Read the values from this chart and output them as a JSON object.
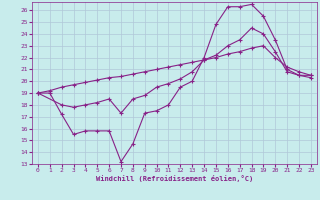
{
  "xlabel": "Windchill (Refroidissement éolien,°C)",
  "bg_color": "#c8ecec",
  "grid_color": "#b0c8d8",
  "line_color": "#882288",
  "xlim": [
    -0.5,
    23.5
  ],
  "ylim": [
    13,
    26.7
  ],
  "yticks": [
    13,
    14,
    15,
    16,
    17,
    18,
    19,
    20,
    21,
    22,
    23,
    24,
    25,
    26
  ],
  "xticks": [
    0,
    1,
    2,
    3,
    4,
    5,
    6,
    7,
    8,
    9,
    10,
    11,
    12,
    13,
    14,
    15,
    16,
    17,
    18,
    19,
    20,
    21,
    22,
    23
  ],
  "line1_x": [
    0,
    1,
    2,
    3,
    4,
    5,
    6,
    7,
    8,
    9,
    10,
    11,
    12,
    13,
    14,
    15,
    16,
    17,
    18,
    19,
    20,
    21,
    22,
    23
  ],
  "line1_y": [
    19.0,
    19.0,
    17.2,
    15.5,
    15.8,
    15.8,
    15.8,
    13.2,
    14.7,
    17.3,
    17.5,
    18.0,
    19.5,
    20.0,
    22.0,
    24.8,
    26.3,
    26.3,
    26.5,
    25.5,
    23.5,
    21.0,
    20.5,
    20.3
  ],
  "line2_x": [
    0,
    2,
    3,
    4,
    5,
    6,
    7,
    8,
    9,
    10,
    11,
    12,
    13,
    14,
    15,
    16,
    17,
    18,
    19,
    20,
    21,
    22,
    23
  ],
  "line2_y": [
    19.0,
    18.0,
    17.8,
    18.0,
    18.2,
    18.5,
    17.3,
    18.5,
    18.8,
    19.5,
    19.8,
    20.2,
    20.8,
    21.8,
    22.2,
    23.0,
    23.5,
    24.5,
    24.0,
    22.5,
    20.8,
    20.5,
    20.5
  ],
  "line3_x": [
    0,
    1,
    2,
    3,
    4,
    5,
    6,
    7,
    8,
    9,
    10,
    11,
    12,
    13,
    14,
    15,
    16,
    17,
    18,
    19,
    20,
    21,
    22,
    23
  ],
  "line3_y": [
    19.0,
    19.2,
    19.5,
    19.7,
    19.9,
    20.1,
    20.3,
    20.4,
    20.6,
    20.8,
    21.0,
    21.2,
    21.4,
    21.6,
    21.8,
    22.0,
    22.3,
    22.5,
    22.8,
    23.0,
    22.0,
    21.2,
    20.8,
    20.5
  ]
}
